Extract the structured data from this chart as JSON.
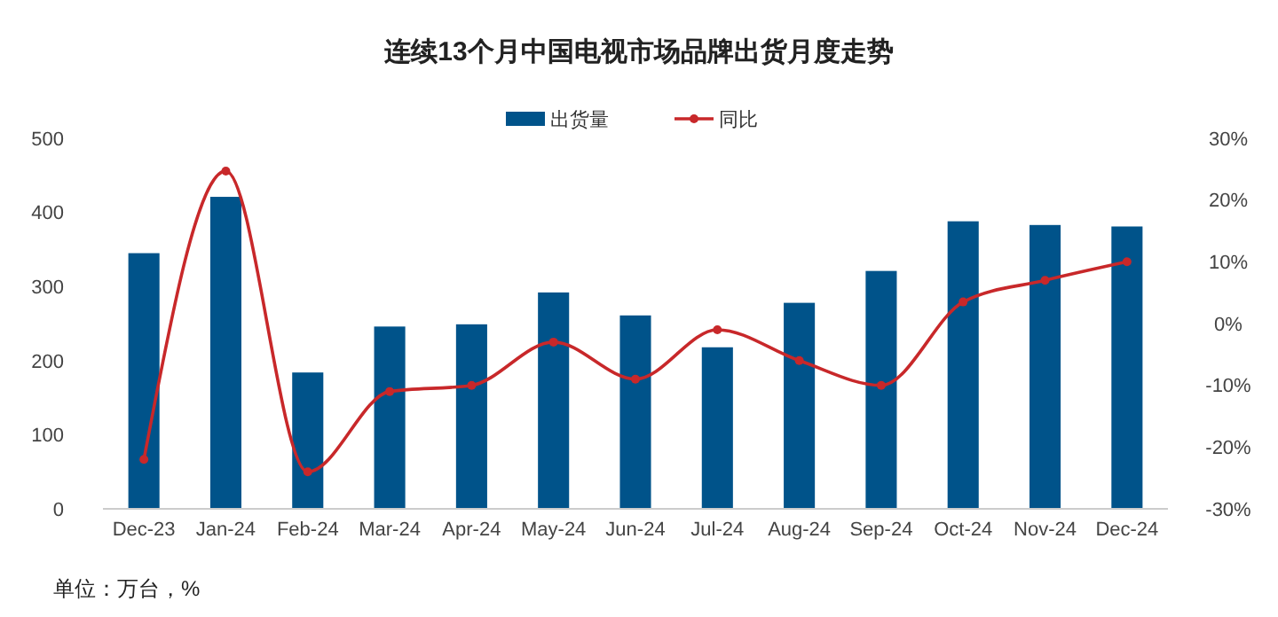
{
  "chart_data": {
    "type": "bar",
    "title": "连续13个月中国电视市场品牌出货月度走势",
    "categories": [
      "Dec-23",
      "Jan-24",
      "Feb-24",
      "Mar-24",
      "Apr-24",
      "May-24",
      "Jun-24",
      "Jul-24",
      "Aug-24",
      "Sep-24",
      "Oct-24",
      "Nov-24",
      "Dec-24"
    ],
    "series": [
      {
        "name": "出货量",
        "color": "#00538a",
        "values": [
          345,
          421,
          184,
          246,
          249,
          292,
          261,
          218,
          278,
          321,
          388,
          383,
          381
        ]
      },
      {
        "name": "同比",
        "type": "line",
        "axis": "y2",
        "color": "#c8282a",
        "marker": "circle",
        "values": [
          -22,
          24.7,
          -24,
          -11,
          -10,
          -3,
          -9,
          -1,
          -6,
          -10,
          3.5,
          7,
          10
        ]
      }
    ],
    "ylim": [
      0,
      500
    ],
    "yticks": [
      0,
      100,
      200,
      300,
      400,
      500
    ],
    "y2lim": [
      -30,
      30
    ],
    "y2ticks": [
      {
        "value": -30,
        "label": "-30%"
      },
      {
        "value": -20,
        "label": "-20%"
      },
      {
        "value": -10,
        "label": "-10%"
      },
      {
        "value": 0,
        "label": "0%"
      },
      {
        "value": 10,
        "label": "10%"
      },
      {
        "value": 20,
        "label": "20%"
      },
      {
        "value": 30,
        "label": "30%"
      }
    ],
    "grid": false,
    "legend": "top",
    "annotations": [
      "单位：万台，%"
    ]
  }
}
